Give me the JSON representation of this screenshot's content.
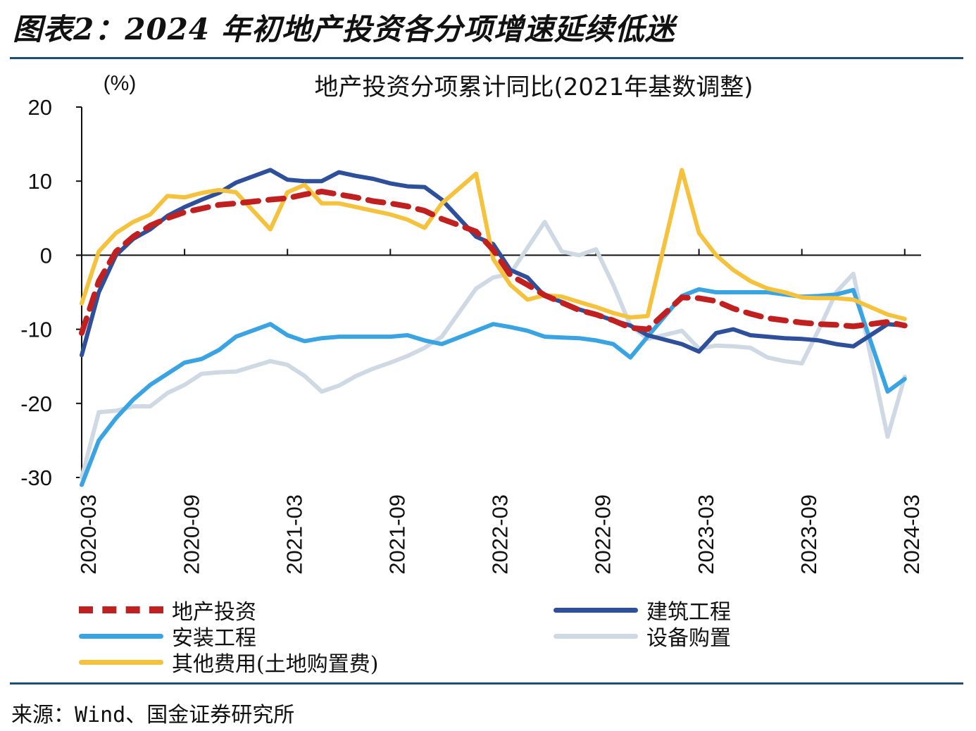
{
  "figure": {
    "title": "图表2：2024 年初地产投资各分项增速延续低迷",
    "source": "来源：Wind、国金证券研究所"
  },
  "chart_data": {
    "type": "line",
    "title": "地产投资分项累计同比(2021年基数调整)",
    "ylabel": "(%)",
    "xlabel": "",
    "ylim": [
      -30,
      20
    ],
    "yticks": [
      20,
      10,
      0,
      -10,
      -20,
      -30
    ],
    "xtick_labels": [
      "2020-03",
      "2020-09",
      "2021-03",
      "2021-09",
      "2022-03",
      "2022-09",
      "2023-03",
      "2023-09",
      "2024-03"
    ],
    "x": [
      "2020-03",
      "2020-04",
      "2020-05",
      "2020-06",
      "2020-07",
      "2020-08",
      "2020-09",
      "2020-10",
      "2020-11",
      "2020-12",
      "2021-02",
      "2021-03",
      "2021-04",
      "2021-05",
      "2021-06",
      "2021-07",
      "2021-08",
      "2021-09",
      "2021-10",
      "2021-11",
      "2021-12",
      "2022-02",
      "2022-03",
      "2022-04",
      "2022-05",
      "2022-06",
      "2022-07",
      "2022-08",
      "2022-09",
      "2022-10",
      "2022-11",
      "2022-12",
      "2023-02",
      "2023-03",
      "2023-04",
      "2023-05",
      "2023-06",
      "2023-07",
      "2023-08",
      "2023-09",
      "2023-10",
      "2023-11",
      "2023-12",
      "2024-02",
      "2024-03"
    ],
    "grid": false,
    "legend_position": "bottom",
    "series": [
      {
        "name": "地产投资",
        "color": "#c0201f",
        "style": "dashed",
        "values": [
          -10.5,
          -3.5,
          0.5,
          2.5,
          4.0,
          5.0,
          5.8,
          6.3,
          6.8,
          7.0,
          7.5,
          7.7,
          8.2,
          8.6,
          8.2,
          7.8,
          7.3,
          7.0,
          6.6,
          6.0,
          4.9,
          3.2,
          0.7,
          -2.7,
          -4.0,
          -5.4,
          -6.4,
          -7.4,
          -8.0,
          -8.8,
          -9.8,
          -10.0,
          -5.7,
          -5.8,
          -6.2,
          -7.2,
          -7.9,
          -8.5,
          -8.8,
          -9.1,
          -9.3,
          -9.4,
          -9.6,
          -9.0,
          -9.5
        ]
      },
      {
        "name": "建筑工程",
        "color": "#2e4f9a",
        "style": "solid",
        "values": [
          -13.5,
          -5.0,
          0.0,
          2.2,
          3.5,
          5.3,
          6.5,
          7.5,
          8.4,
          9.8,
          11.5,
          10.2,
          10.0,
          10.0,
          11.2,
          10.7,
          10.3,
          9.7,
          9.3,
          9.2,
          7.5,
          2.5,
          1.5,
          -2.0,
          -3.0,
          -5.5,
          -6.3,
          -7.3,
          -8.0,
          -8.8,
          -9.5,
          -10.8,
          -12.0,
          -13.0,
          -10.5,
          -10.0,
          -10.8,
          -11.0,
          -11.2,
          -11.3,
          -11.5,
          -12.0,
          -12.3,
          -9.3,
          -9.5
        ]
      },
      {
        "name": "安装工程",
        "color": "#3aa4e3",
        "style": "solid",
        "values": [
          -31.0,
          -25.0,
          -22.0,
          -19.5,
          -17.5,
          -16.0,
          -14.5,
          -14.0,
          -12.8,
          -11.0,
          -9.3,
          -10.8,
          -11.6,
          -11.2,
          -11.0,
          -11.0,
          -11.0,
          -11.0,
          -10.8,
          -11.5,
          -12.0,
          -10.2,
          -9.3,
          -9.7,
          -10.2,
          -11.0,
          -11.1,
          -11.2,
          -11.5,
          -12.0,
          -13.8,
          -11.0,
          -5.5,
          -4.6,
          -5.0,
          -5.0,
          -5.0,
          -5.0,
          -5.3,
          -5.6,
          -5.5,
          -5.3,
          -4.7,
          -18.4,
          -16.7
        ]
      },
      {
        "name": "设备购置",
        "color": "#cfd9e4",
        "style": "solid",
        "values": [
          -30.0,
          -21.2,
          -21.0,
          -20.4,
          -20.4,
          -18.6,
          -17.5,
          -16.0,
          -15.8,
          -15.7,
          -14.3,
          -14.8,
          -16.3,
          -18.4,
          -17.6,
          -16.3,
          -15.3,
          -14.5,
          -13.6,
          -12.5,
          -11.0,
          -4.5,
          -3.0,
          -2.5,
          1.0,
          4.5,
          0.5,
          0.0,
          0.8,
          -4.0,
          -9.5,
          -11.3,
          -10.2,
          -12.6,
          -12.2,
          -12.3,
          -12.5,
          -13.8,
          -14.3,
          -14.6,
          -10.0,
          -5.0,
          -2.5,
          -24.5,
          -16.4
        ]
      },
      {
        "name": "其他费用(土地购置费)",
        "color": "#f5c23e",
        "style": "solid",
        "values": [
          -6.5,
          0.5,
          3.0,
          4.5,
          5.5,
          8.0,
          7.8,
          8.4,
          8.8,
          8.5,
          3.5,
          8.5,
          9.5,
          7.0,
          7.0,
          6.5,
          6.0,
          5.5,
          4.8,
          3.7,
          7.0,
          11.0,
          -0.5,
          -4.0,
          -6.0,
          -5.4,
          -5.6,
          -6.3,
          -7.0,
          -7.8,
          -8.4,
          -8.2,
          11.5,
          3.0,
          0.0,
          -2.0,
          -3.5,
          -4.5,
          -5.0,
          -5.7,
          -5.8,
          -5.8,
          -6.0,
          -8.0,
          -8.6
        ]
      }
    ]
  }
}
